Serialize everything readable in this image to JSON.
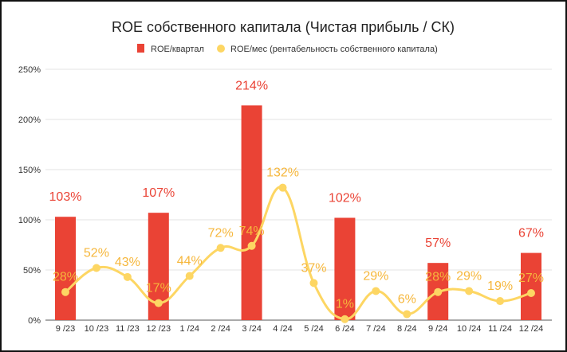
{
  "chart_data": {
    "type": "bar+line",
    "title": "ROE собственного капитала (Чистая прибыль / СК)",
    "legend_position": "top",
    "categories": [
      "9 /23",
      "10 /23",
      "11 /23",
      "12 /23",
      "1 /24",
      "2 /24",
      "3 /24",
      "4 /24",
      "5 /24",
      "6 /24",
      "7 /24",
      "8 /24",
      "9 /24",
      "10 /24",
      "11 /24",
      "12 /24"
    ],
    "series": [
      {
        "name": "ROE/квартал",
        "type": "bar",
        "color": "#ea4335",
        "values": [
          103,
          null,
          null,
          107,
          null,
          null,
          214,
          null,
          null,
          102,
          null,
          null,
          57,
          null,
          null,
          67
        ]
      },
      {
        "name": "ROE/мес (рентабельность собственного капитала)",
        "type": "line",
        "color": "#fdd663",
        "label_color": "#f6b73c",
        "values": [
          28,
          52,
          43,
          17,
          44,
          72,
          74,
          132,
          37,
          1,
          29,
          6,
          28,
          29,
          19,
          27
        ]
      }
    ],
    "ylim": [
      0,
      250
    ],
    "yticks": [
      0,
      50,
      100,
      150,
      200,
      250
    ],
    "ytick_labels": [
      "0%",
      "50%",
      "100%",
      "150%",
      "200%",
      "250%"
    ],
    "grid": true,
    "xlabel": "",
    "ylabel": ""
  }
}
